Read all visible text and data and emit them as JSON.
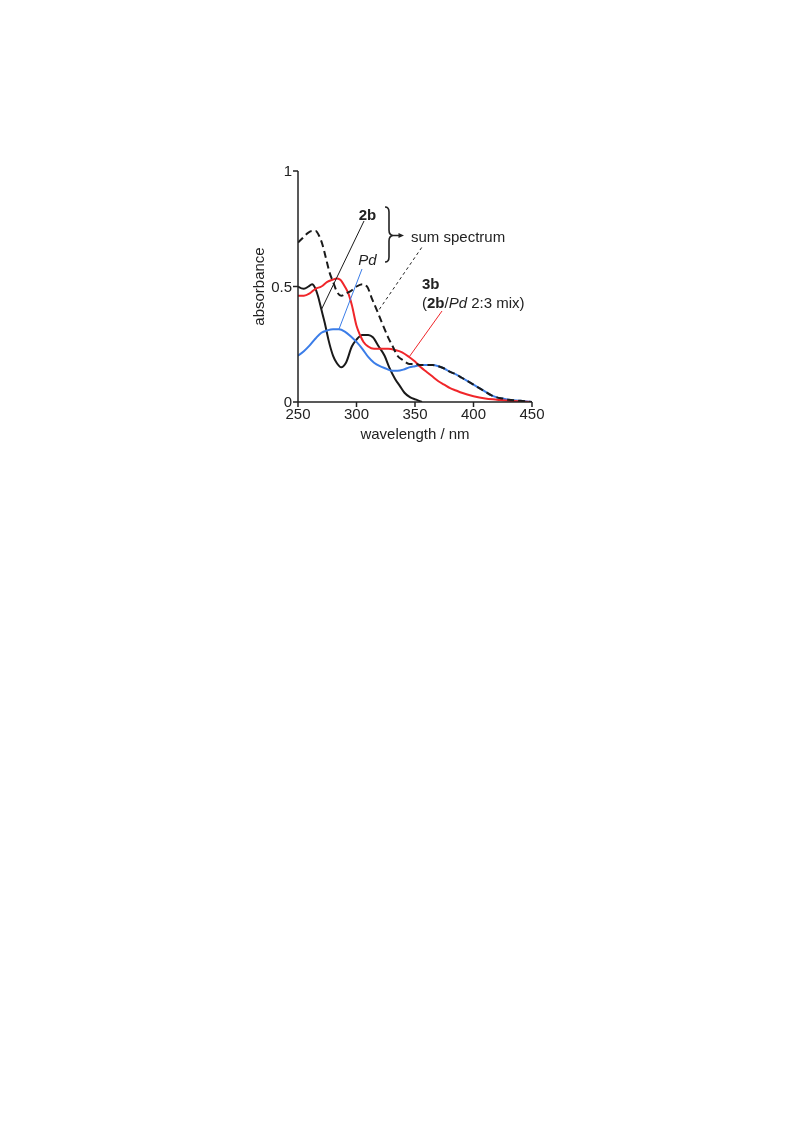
{
  "chart_data": {
    "type": "line",
    "xlabel": "wavelength / nm",
    "ylabel": "absorbance",
    "xlim": [
      250,
      450
    ],
    "ylim": [
      0,
      1
    ],
    "xticks": [
      250,
      300,
      350,
      400,
      450
    ],
    "yticks": [
      0,
      0.5,
      1
    ],
    "grid": false,
    "legend": false,
    "marker": "none",
    "annotations": [
      {
        "text": "sum spectrum",
        "x": 318,
        "y": 0.39
      }
    ],
    "series": [
      {
        "name": "2b",
        "color": "#1a1a1a",
        "x": [
          250,
          255,
          259,
          262,
          265,
          267,
          270,
          273,
          276,
          280,
          283,
          287,
          291,
          296,
          300,
          305,
          310,
          314,
          319,
          324,
          328,
          333,
          337,
          341,
          346,
          351,
          356
        ],
        "values": [
          0.5,
          0.49,
          0.5,
          0.51,
          0.49,
          0.46,
          0.4,
          0.34,
          0.27,
          0.2,
          0.17,
          0.15,
          0.17,
          0.24,
          0.27,
          0.29,
          0.29,
          0.28,
          0.24,
          0.2,
          0.15,
          0.1,
          0.07,
          0.04,
          0.02,
          0.01,
          0
        ]
      },
      {
        "name": "Pd",
        "color": "#3b7de8",
        "x": [
          250,
          255,
          260,
          265,
          270,
          275,
          280,
          285,
          290,
          295,
          300,
          305,
          310,
          315,
          320,
          325,
          330,
          335,
          340,
          345,
          350,
          355,
          360,
          365,
          370,
          375,
          380,
          385,
          390,
          395,
          400,
          405,
          410,
          415,
          420,
          425,
          430,
          440,
          450
        ],
        "values": [
          0.2,
          0.22,
          0.245,
          0.275,
          0.3,
          0.31,
          0.315,
          0.315,
          0.305,
          0.285,
          0.26,
          0.23,
          0.195,
          0.17,
          0.155,
          0.145,
          0.135,
          0.135,
          0.14,
          0.15,
          0.155,
          0.16,
          0.16,
          0.16,
          0.155,
          0.145,
          0.13,
          0.12,
          0.105,
          0.09,
          0.075,
          0.06,
          0.045,
          0.03,
          0.02,
          0.015,
          0.01,
          0.005,
          0
        ]
      },
      {
        "name": "3b (2b/Pd 2:3 mix)",
        "color": "#f0262a",
        "x": [
          250,
          255,
          260,
          265,
          270,
          275,
          280,
          283,
          286,
          290,
          293,
          296,
          300,
          303,
          306,
          310,
          315,
          320,
          327,
          333,
          339,
          345,
          350,
          355,
          360,
          365,
          370,
          375,
          380,
          385,
          390,
          400,
          410,
          420,
          430,
          450
        ],
        "values": [
          0.46,
          0.46,
          0.47,
          0.49,
          0.5,
          0.52,
          0.53,
          0.535,
          0.53,
          0.5,
          0.47,
          0.42,
          0.33,
          0.29,
          0.26,
          0.24,
          0.23,
          0.23,
          0.23,
          0.225,
          0.215,
          0.195,
          0.175,
          0.15,
          0.13,
          0.11,
          0.09,
          0.075,
          0.06,
          0.05,
          0.04,
          0.025,
          0.015,
          0.01,
          0.005,
          0
        ]
      },
      {
        "color": "#1a1a1a",
        "line_style": "dashed",
        "x": [
          250,
          254,
          258,
          262,
          265,
          268,
          271,
          274,
          277,
          280,
          283,
          287,
          291,
          295,
          300,
          305,
          309,
          313,
          318,
          322,
          327,
          331,
          335,
          340,
          345,
          350,
          355,
          360,
          365,
          370,
          375,
          380,
          385,
          390,
          395,
          400,
          405,
          410,
          415,
          420,
          425,
          430,
          440,
          450
        ],
        "values": [
          0.69,
          0.71,
          0.73,
          0.74,
          0.74,
          0.72,
          0.68,
          0.62,
          0.56,
          0.52,
          0.48,
          0.46,
          0.47,
          0.48,
          0.5,
          0.51,
          0.5,
          0.45,
          0.39,
          0.34,
          0.28,
          0.24,
          0.2,
          0.18,
          0.165,
          0.165,
          0.16,
          0.16,
          0.16,
          0.155,
          0.145,
          0.13,
          0.12,
          0.105,
          0.09,
          0.075,
          0.06,
          0.045,
          0.03,
          0.02,
          0.015,
          0.01,
          0.005,
          0
        ]
      }
    ]
  }
}
